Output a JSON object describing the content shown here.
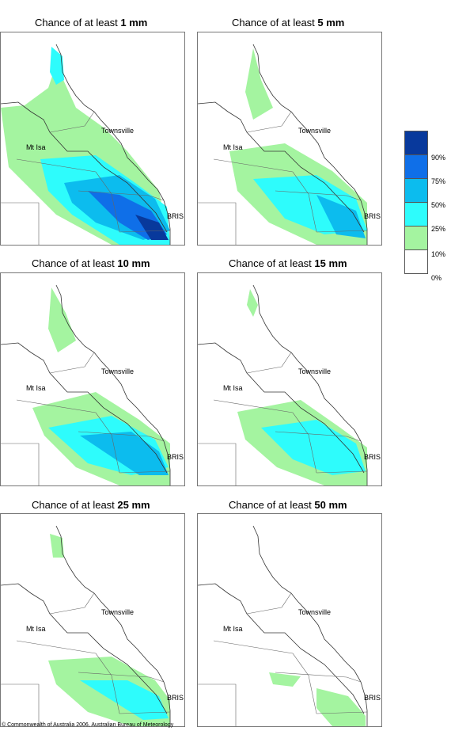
{
  "panels": [
    {
      "prefix": "Chance of at least ",
      "amount": "1 mm"
    },
    {
      "prefix": "Chance of at least ",
      "amount": "5 mm"
    },
    {
      "prefix": "Chance of at least ",
      "amount": "10 mm"
    },
    {
      "prefix": "Chance of at least ",
      "amount": "15 mm"
    },
    {
      "prefix": "Chance of at least ",
      "amount": "25 mm"
    },
    {
      "prefix": "Chance of at least ",
      "amount": "50 mm"
    }
  ],
  "places": {
    "townsville": "Townsville",
    "mt_isa": "Mt Isa",
    "brisbane": "BRIS"
  },
  "legend": {
    "colors": [
      "#08399c",
      "#0f6fe8",
      "#0cbcee",
      "#2efcfc",
      "#a4f4a0",
      "#ffffff"
    ],
    "labels": [
      "90%",
      "75%",
      "50%",
      "25%",
      "10%",
      "0%"
    ]
  },
  "footer": "© Commonwealth of Australia 2006, Australian Bureau of Meteorology"
}
